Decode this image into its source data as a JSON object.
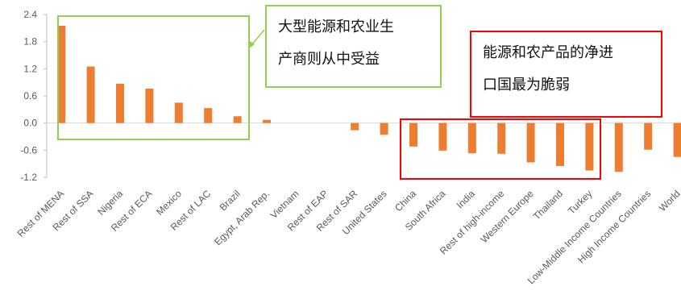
{
  "chart_data": {
    "type": "bar",
    "title": "",
    "xlabel": "",
    "ylabel": "",
    "ylim": [
      -1.2,
      2.4
    ],
    "yticks": [
      2.4,
      1.8,
      1.2,
      0.6,
      0.0,
      -0.6,
      -1.2
    ],
    "ytick_labels": [
      "2.4",
      "1.8",
      "1.2",
      "0.6",
      "0.0",
      "-0.6",
      "-1.2"
    ],
    "grid": false,
    "legend": "none",
    "bar_color": "#ed7d31",
    "categories": [
      "Rest of MENA",
      "Rest of SSA",
      "Nigeria",
      "Rest of ECA",
      "Mexico",
      "Rest of LAC",
      "Brazil",
      "Egypt, Arab Rep.",
      "Vietnam",
      "Rest of EAP",
      "Rest of SAR",
      "United States",
      "China",
      "South Africa",
      "India",
      "Rest of high-income",
      "Western Europe",
      "Thailand",
      "Turkey",
      "Low-Middle Income Countries",
      "High Income Countries",
      "World"
    ],
    "values": [
      2.15,
      1.25,
      0.87,
      0.76,
      0.45,
      0.33,
      0.15,
      0.07,
      0.0,
      0.0,
      -0.16,
      -0.26,
      -0.52,
      -0.61,
      -0.67,
      -0.68,
      -0.87,
      -0.95,
      -1.05,
      -1.08,
      -0.59,
      -0.75
    ]
  },
  "annotations": {
    "green_text": [
      "大型能源和农业生",
      "产商则从中受益"
    ],
    "red_text": [
      "能源和农产品的净进",
      "口国最为脆弱"
    ],
    "green_color": "#92d050",
    "red_color": "#ff0000"
  }
}
